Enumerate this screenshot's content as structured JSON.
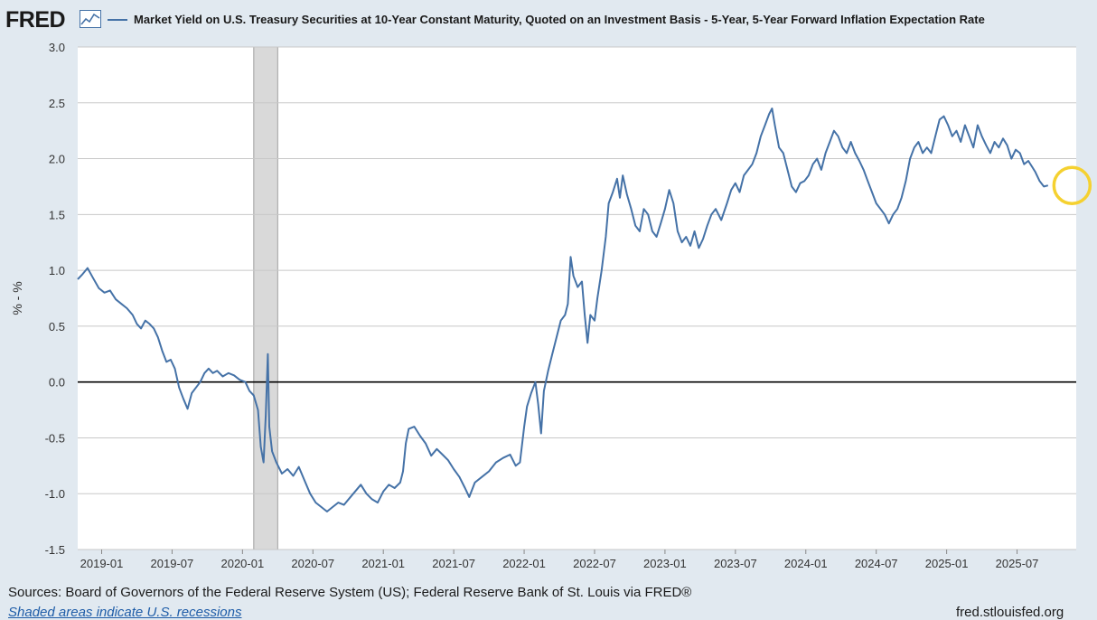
{
  "header": {
    "logo_text": "FRED",
    "title": "Market Yield on U.S. Treasury Securities at 10-Year Constant Maturity, Quoted on an Investment Basis - 5-Year, 5-Year Forward Inflation Expectation Rate"
  },
  "footer": {
    "sources": "Sources: Board of Governors of the Federal Reserve System (US); Federal Reserve Bank of St. Louis via FRED®",
    "recessions_note": "Shaded areas indicate U.S. recessions",
    "site": "fred.stlouisfed.org"
  },
  "colors": {
    "series": "#4572a7",
    "recession": "#d9d9d9",
    "highlight": "#f5d130",
    "zero_line": "#000000"
  },
  "chart_data": {
    "type": "line",
    "ylabel": "% - %",
    "ylim": [
      -1.5,
      3.0
    ],
    "yticks": [
      "3.0",
      "2.5",
      "2.0",
      "1.5",
      "1.0",
      "0.5",
      "0.0",
      "-0.5",
      "-1.0",
      "-1.5"
    ],
    "xlim": [
      2018.83,
      2025.92
    ],
    "xticks": [
      {
        "label": "2019-01",
        "t": 2019.0
      },
      {
        "label": "2019-07",
        "t": 2019.5
      },
      {
        "label": "2020-01",
        "t": 2020.0
      },
      {
        "label": "2020-07",
        "t": 2020.5
      },
      {
        "label": "2021-01",
        "t": 2021.0
      },
      {
        "label": "2021-07",
        "t": 2021.5
      },
      {
        "label": "2022-01",
        "t": 2022.0
      },
      {
        "label": "2022-07",
        "t": 2022.5
      },
      {
        "label": "2023-01",
        "t": 2023.0
      },
      {
        "label": "2023-07",
        "t": 2023.5
      },
      {
        "label": "2024-01",
        "t": 2024.0
      },
      {
        "label": "2024-07",
        "t": 2024.5
      },
      {
        "label": "2025-01",
        "t": 2025.0
      },
      {
        "label": "2025-07",
        "t": 2025.5
      }
    ],
    "recession": {
      "start": 2020.08,
      "end": 2020.25
    },
    "highlight_point": {
      "t": 2025.89,
      "v": 1.76
    },
    "series": [
      {
        "name": "Market Yield on U.S. Treasury Securities at 10-Year Constant Maturity, Quoted on an Investment Basis - 5-Year, 5-Year Forward Inflation Expectation Rate",
        "points": [
          [
            2018.83,
            0.92
          ],
          [
            2018.86,
            0.96
          ],
          [
            2018.9,
            1.02
          ],
          [
            2018.94,
            0.93
          ],
          [
            2018.98,
            0.84
          ],
          [
            2019.02,
            0.8
          ],
          [
            2019.06,
            0.82
          ],
          [
            2019.1,
            0.74
          ],
          [
            2019.14,
            0.7
          ],
          [
            2019.18,
            0.66
          ],
          [
            2019.22,
            0.6
          ],
          [
            2019.25,
            0.52
          ],
          [
            2019.28,
            0.48
          ],
          [
            2019.31,
            0.55
          ],
          [
            2019.34,
            0.52
          ],
          [
            2019.37,
            0.48
          ],
          [
            2019.4,
            0.4
          ],
          [
            2019.43,
            0.28
          ],
          [
            2019.46,
            0.18
          ],
          [
            2019.49,
            0.2
          ],
          [
            2019.52,
            0.12
          ],
          [
            2019.55,
            -0.05
          ],
          [
            2019.58,
            -0.15
          ],
          [
            2019.61,
            -0.24
          ],
          [
            2019.64,
            -0.1
          ],
          [
            2019.67,
            -0.05
          ],
          [
            2019.7,
            0.0
          ],
          [
            2019.73,
            0.08
          ],
          [
            2019.76,
            0.12
          ],
          [
            2019.79,
            0.08
          ],
          [
            2019.82,
            0.1
          ],
          [
            2019.86,
            0.05
          ],
          [
            2019.9,
            0.08
          ],
          [
            2019.94,
            0.06
          ],
          [
            2019.98,
            0.02
          ],
          [
            2020.02,
            0.0
          ],
          [
            2020.05,
            -0.08
          ],
          [
            2020.08,
            -0.12
          ],
          [
            2020.11,
            -0.25
          ],
          [
            2020.13,
            -0.58
          ],
          [
            2020.15,
            -0.72
          ],
          [
            2020.165,
            -0.3
          ],
          [
            2020.18,
            0.25
          ],
          [
            2020.19,
            -0.4
          ],
          [
            2020.21,
            -0.62
          ],
          [
            2020.24,
            -0.72
          ],
          [
            2020.28,
            -0.82
          ],
          [
            2020.32,
            -0.78
          ],
          [
            2020.36,
            -0.84
          ],
          [
            2020.4,
            -0.76
          ],
          [
            2020.44,
            -0.88
          ],
          [
            2020.48,
            -1.0
          ],
          [
            2020.52,
            -1.08
          ],
          [
            2020.56,
            -1.12
          ],
          [
            2020.6,
            -1.16
          ],
          [
            2020.64,
            -1.12
          ],
          [
            2020.68,
            -1.08
          ],
          [
            2020.72,
            -1.1
          ],
          [
            2020.76,
            -1.04
          ],
          [
            2020.8,
            -0.98
          ],
          [
            2020.84,
            -0.92
          ],
          [
            2020.88,
            -1.0
          ],
          [
            2020.92,
            -1.05
          ],
          [
            2020.96,
            -1.08
          ],
          [
            2021.0,
            -0.98
          ],
          [
            2021.04,
            -0.92
          ],
          [
            2021.08,
            -0.95
          ],
          [
            2021.12,
            -0.9
          ],
          [
            2021.14,
            -0.8
          ],
          [
            2021.16,
            -0.55
          ],
          [
            2021.18,
            -0.42
          ],
          [
            2021.22,
            -0.4
          ],
          [
            2021.26,
            -0.48
          ],
          [
            2021.3,
            -0.55
          ],
          [
            2021.34,
            -0.66
          ],
          [
            2021.38,
            -0.6
          ],
          [
            2021.42,
            -0.65
          ],
          [
            2021.46,
            -0.7
          ],
          [
            2021.5,
            -0.78
          ],
          [
            2021.54,
            -0.85
          ],
          [
            2021.58,
            -0.95
          ],
          [
            2021.61,
            -1.03
          ],
          [
            2021.65,
            -0.9
          ],
          [
            2021.7,
            -0.85
          ],
          [
            2021.75,
            -0.8
          ],
          [
            2021.8,
            -0.72
          ],
          [
            2021.85,
            -0.68
          ],
          [
            2021.9,
            -0.65
          ],
          [
            2021.94,
            -0.75
          ],
          [
            2021.97,
            -0.72
          ],
          [
            2022.0,
            -0.4
          ],
          [
            2022.02,
            -0.22
          ],
          [
            2022.05,
            -0.1
          ],
          [
            2022.08,
            0.0
          ],
          [
            2022.1,
            -0.2
          ],
          [
            2022.12,
            -0.46
          ],
          [
            2022.14,
            -0.08
          ],
          [
            2022.17,
            0.1
          ],
          [
            2022.2,
            0.25
          ],
          [
            2022.23,
            0.4
          ],
          [
            2022.26,
            0.55
          ],
          [
            2022.29,
            0.6
          ],
          [
            2022.31,
            0.7
          ],
          [
            2022.33,
            1.12
          ],
          [
            2022.35,
            0.95
          ],
          [
            2022.38,
            0.85
          ],
          [
            2022.41,
            0.9
          ],
          [
            2022.43,
            0.6
          ],
          [
            2022.45,
            0.35
          ],
          [
            2022.47,
            0.6
          ],
          [
            2022.5,
            0.55
          ],
          [
            2022.52,
            0.75
          ],
          [
            2022.55,
            1.0
          ],
          [
            2022.58,
            1.3
          ],
          [
            2022.6,
            1.6
          ],
          [
            2022.63,
            1.7
          ],
          [
            2022.66,
            1.82
          ],
          [
            2022.68,
            1.65
          ],
          [
            2022.7,
            1.85
          ],
          [
            2022.73,
            1.68
          ],
          [
            2022.76,
            1.55
          ],
          [
            2022.79,
            1.4
          ],
          [
            2022.82,
            1.35
          ],
          [
            2022.85,
            1.55
          ],
          [
            2022.88,
            1.5
          ],
          [
            2022.91,
            1.35
          ],
          [
            2022.94,
            1.3
          ],
          [
            2022.97,
            1.42
          ],
          [
            2023.0,
            1.55
          ],
          [
            2023.03,
            1.72
          ],
          [
            2023.06,
            1.6
          ],
          [
            2023.09,
            1.35
          ],
          [
            2023.12,
            1.25
          ],
          [
            2023.15,
            1.3
          ],
          [
            2023.18,
            1.22
          ],
          [
            2023.21,
            1.35
          ],
          [
            2023.24,
            1.2
          ],
          [
            2023.27,
            1.28
          ],
          [
            2023.3,
            1.4
          ],
          [
            2023.33,
            1.5
          ],
          [
            2023.36,
            1.55
          ],
          [
            2023.4,
            1.45
          ],
          [
            2023.44,
            1.6
          ],
          [
            2023.47,
            1.72
          ],
          [
            2023.5,
            1.78
          ],
          [
            2023.53,
            1.7
          ],
          [
            2023.56,
            1.85
          ],
          [
            2023.59,
            1.9
          ],
          [
            2023.62,
            1.95
          ],
          [
            2023.65,
            2.05
          ],
          [
            2023.68,
            2.2
          ],
          [
            2023.71,
            2.3
          ],
          [
            2023.74,
            2.4
          ],
          [
            2023.76,
            2.45
          ],
          [
            2023.78,
            2.3
          ],
          [
            2023.81,
            2.1
          ],
          [
            2023.84,
            2.05
          ],
          [
            2023.87,
            1.9
          ],
          [
            2023.9,
            1.75
          ],
          [
            2023.93,
            1.7
          ],
          [
            2023.96,
            1.78
          ],
          [
            2023.99,
            1.8
          ],
          [
            2024.02,
            1.85
          ],
          [
            2024.05,
            1.95
          ],
          [
            2024.08,
            2.0
          ],
          [
            2024.11,
            1.9
          ],
          [
            2024.14,
            2.05
          ],
          [
            2024.17,
            2.15
          ],
          [
            2024.2,
            2.25
          ],
          [
            2024.23,
            2.2
          ],
          [
            2024.26,
            2.1
          ],
          [
            2024.29,
            2.05
          ],
          [
            2024.32,
            2.15
          ],
          [
            2024.35,
            2.05
          ],
          [
            2024.38,
            1.98
          ],
          [
            2024.41,
            1.9
          ],
          [
            2024.44,
            1.8
          ],
          [
            2024.47,
            1.7
          ],
          [
            2024.5,
            1.6
          ],
          [
            2024.53,
            1.55
          ],
          [
            2024.56,
            1.5
          ],
          [
            2024.59,
            1.42
          ],
          [
            2024.62,
            1.5
          ],
          [
            2024.65,
            1.55
          ],
          [
            2024.68,
            1.65
          ],
          [
            2024.71,
            1.8
          ],
          [
            2024.74,
            2.0
          ],
          [
            2024.77,
            2.1
          ],
          [
            2024.8,
            2.15
          ],
          [
            2024.83,
            2.05
          ],
          [
            2024.86,
            2.1
          ],
          [
            2024.89,
            2.05
          ],
          [
            2024.92,
            2.2
          ],
          [
            2024.95,
            2.35
          ],
          [
            2024.98,
            2.38
          ],
          [
            2025.01,
            2.3
          ],
          [
            2025.04,
            2.2
          ],
          [
            2025.07,
            2.25
          ],
          [
            2025.1,
            2.15
          ],
          [
            2025.13,
            2.3
          ],
          [
            2025.16,
            2.2
          ],
          [
            2025.19,
            2.1
          ],
          [
            2025.22,
            2.3
          ],
          [
            2025.25,
            2.2
          ],
          [
            2025.28,
            2.12
          ],
          [
            2025.31,
            2.05
          ],
          [
            2025.34,
            2.15
          ],
          [
            2025.37,
            2.1
          ],
          [
            2025.4,
            2.18
          ],
          [
            2025.43,
            2.12
          ],
          [
            2025.46,
            2.0
          ],
          [
            2025.49,
            2.08
          ],
          [
            2025.52,
            2.05
          ],
          [
            2025.55,
            1.95
          ],
          [
            2025.58,
            1.98
          ],
          [
            2025.61,
            1.92
          ],
          [
            2025.63,
            1.88
          ],
          [
            2025.66,
            1.8
          ],
          [
            2025.69,
            1.75
          ],
          [
            2025.72,
            1.76
          ]
        ]
      }
    ]
  }
}
